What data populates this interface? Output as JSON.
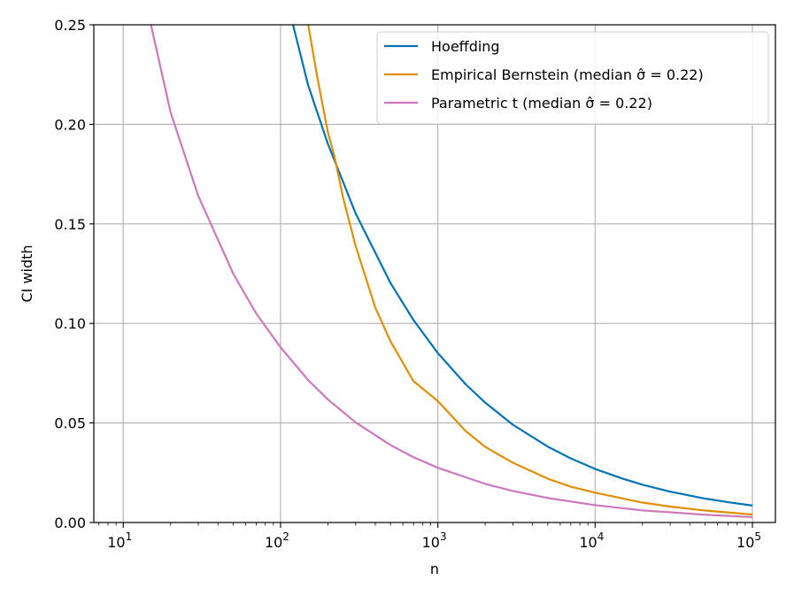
{
  "chart_data": {
    "type": "line",
    "title": "",
    "xlabel": "n",
    "ylabel": "CI width",
    "xscale": "log",
    "xlim": [
      6.5,
      140000
    ],
    "ylim": [
      0,
      0.25
    ],
    "grid": true,
    "legend_position": "top-right",
    "x_ticks": [
      {
        "value": 10,
        "base": "10",
        "exp": "1"
      },
      {
        "value": 100,
        "base": "10",
        "exp": "2"
      },
      {
        "value": 1000,
        "base": "10",
        "exp": "3"
      },
      {
        "value": 10000,
        "base": "10",
        "exp": "4"
      },
      {
        "value": 100000,
        "base": "10",
        "exp": "5"
      }
    ],
    "y_ticks": [
      "0.00",
      "0.05",
      "0.10",
      "0.15",
      "0.20",
      "0.25"
    ],
    "series": [
      {
        "name": "Hoeffding",
        "color": "#0173b2",
        "x": [
          120,
          150,
          200,
          300,
          500,
          700,
          1000,
          1500,
          2000,
          3000,
          5000,
          7000,
          10000,
          15000,
          20000,
          30000,
          50000,
          70000,
          100000
        ],
        "y": [
          0.25,
          0.2195,
          0.1902,
          0.1553,
          0.1203,
          0.1017,
          0.0851,
          0.0695,
          0.0602,
          0.0491,
          0.0381,
          0.0322,
          0.0269,
          0.022,
          0.019,
          0.0155,
          0.012,
          0.0102,
          0.0085
        ]
      },
      {
        "name": "Empirical Bernstein (median σ̂ = 0.22)",
        "color": "#de8f05",
        "x": [
          150,
          170,
          200,
          220,
          250,
          300,
          400,
          500,
          700,
          1000,
          1500,
          2000,
          3000,
          5000,
          7000,
          10000,
          20000,
          30000,
          50000,
          100000
        ],
        "y": [
          0.25,
          0.225,
          0.196,
          0.184,
          0.163,
          0.139,
          0.108,
          0.091,
          0.071,
          0.061,
          0.046,
          0.038,
          0.03,
          0.022,
          0.018,
          0.015,
          0.01,
          0.008,
          0.006,
          0.004
        ]
      },
      {
        "name": "Parametric t (median σ̂ = 0.22)",
        "color": "#cc78bc",
        "x": [
          15,
          20,
          30,
          50,
          70,
          100,
          150,
          200,
          300,
          500,
          700,
          1000,
          2000,
          3000,
          5000,
          10000,
          20000,
          50000,
          100000
        ],
        "y": [
          0.25,
          0.206,
          0.164,
          0.125,
          0.105,
          0.088,
          0.0715,
          0.0618,
          0.0503,
          0.0389,
          0.0328,
          0.0275,
          0.0194,
          0.0158,
          0.0123,
          0.0087,
          0.0061,
          0.0039,
          0.0027
        ]
      }
    ]
  }
}
